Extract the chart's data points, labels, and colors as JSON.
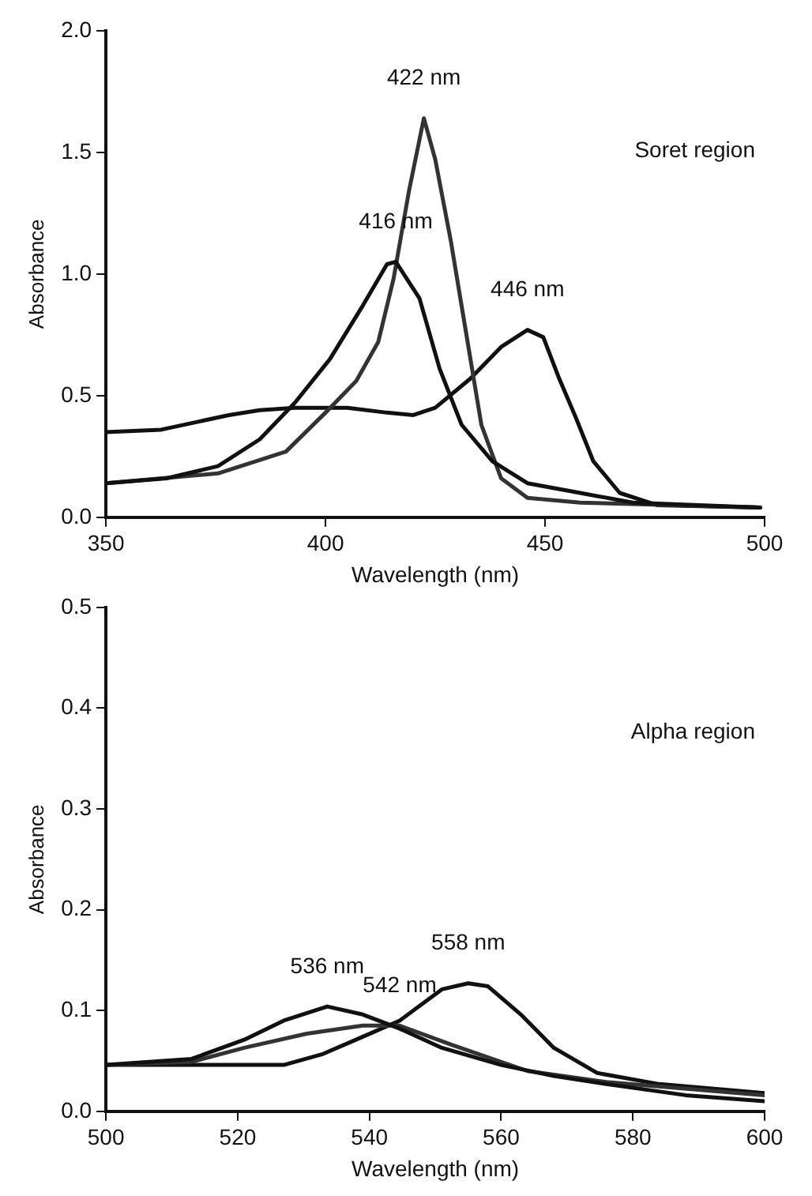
{
  "chart_data": [
    {
      "type": "line",
      "xlabel": "Wavelength (nm)",
      "ylabel": "Absorbance",
      "xlim": [
        350,
        500
      ],
      "ylim": [
        0,
        2.0
      ],
      "xticks": [
        350,
        400,
        450,
        500
      ],
      "yticks": [
        {
          "value": 0,
          "label": "0.0"
        },
        {
          "value": 0.5,
          "label": "0.5"
        },
        {
          "value": 1,
          "label": "1.0"
        },
        {
          "value": 1.5,
          "label": "1.5"
        },
        {
          "value": 2,
          "label": "2.0"
        }
      ],
      "grid": false,
      "legend": false,
      "marker": "none",
      "line_style": "solid",
      "series": [
        {
          "color": "#111111",
          "x": [
            350,
            363.8,
            375.5,
            385,
            393,
            401,
            408.5,
            414,
            416,
            421.4,
            426,
            431,
            438,
            446,
            458,
            470,
            499
          ],
          "values": [
            0.14,
            0.16,
            0.21,
            0.32,
            0.47,
            0.65,
            0.87,
            1.04,
            1.05,
            0.9,
            0.61,
            0.38,
            0.23,
            0.14,
            0.1,
            0.06,
            0.04
          ]
        },
        {
          "color": "#333333",
          "x": [
            350,
            375.5,
            391,
            400,
            407,
            412,
            415.5,
            419,
            422.4,
            425,
            428.5,
            432,
            435.5,
            440,
            446,
            458,
            499
          ],
          "values": [
            0.14,
            0.18,
            0.27,
            0.43,
            0.56,
            0.72,
            0.98,
            1.34,
            1.64,
            1.47,
            1.14,
            0.76,
            0.38,
            0.16,
            0.08,
            0.06,
            0.04
          ]
        },
        {
          "color": "#111111",
          "x": [
            350,
            362.6,
            378,
            385,
            393,
            405,
            414,
            420,
            425,
            433,
            440,
            446,
            449.6,
            453,
            457,
            461,
            467,
            475.5,
            499
          ],
          "values": [
            0.35,
            0.36,
            0.42,
            0.44,
            0.45,
            0.45,
            0.43,
            0.42,
            0.45,
            0.57,
            0.7,
            0.77,
            0.74,
            0.58,
            0.41,
            0.23,
            0.1,
            0.05,
            0.04
          ]
        }
      ],
      "annotations": [
        {
          "text": "416 nm",
          "x": 416,
          "y": 1.05
        },
        {
          "text": "422 nm",
          "x": 422.4,
          "y": 1.64
        },
        {
          "text": "446 nm",
          "x": 446,
          "y": 0.77
        },
        "Soret region"
      ]
    },
    {
      "type": "line",
      "xlabel": "Wavelength (nm)",
      "ylabel": "Absorbance",
      "xlim": [
        500,
        600
      ],
      "ylim": [
        0,
        0.5
      ],
      "xticks": [
        500,
        520,
        540,
        560,
        580,
        600
      ],
      "yticks": [
        {
          "value": 0,
          "label": "0.0"
        },
        0.1,
        0.2,
        0.3,
        0.4,
        0.5
      ],
      "grid": false,
      "legend": false,
      "marker": "none",
      "line_style": "solid",
      "series": [
        {
          "color": "#111111",
          "x": [
            500,
            513,
            521,
            527,
            533.6,
            539,
            544.6,
            551,
            560,
            568,
            576,
            588,
            600
          ],
          "values": [
            0.046,
            0.052,
            0.071,
            0.09,
            0.104,
            0.096,
            0.082,
            0.063,
            0.046,
            0.035,
            0.027,
            0.016,
            0.01
          ]
        },
        {
          "color": "#333333",
          "x": [
            500,
            513,
            521,
            530.5,
            539,
            544.6,
            552.5,
            564,
            576,
            600
          ],
          "values": [
            0.046,
            0.049,
            0.063,
            0.077,
            0.085,
            0.085,
            0.066,
            0.04,
            0.029,
            0.016
          ]
        },
        {
          "color": "#111111",
          "x": [
            500,
            517,
            527,
            533,
            539,
            544.6,
            551,
            555,
            558,
            563,
            568,
            574.6,
            584,
            600
          ],
          "values": [
            0.046,
            0.046,
            0.046,
            0.057,
            0.074,
            0.09,
            0.121,
            0.127,
            0.124,
            0.096,
            0.063,
            0.038,
            0.027,
            0.018
          ]
        }
      ],
      "annotations": [
        {
          "text": "536 nm",
          "x": 533.6,
          "y": 0.104
        },
        {
          "text": "542 nm",
          "x": 544.6,
          "y": 0.085
        },
        {
          "text": "558 nm",
          "x": 555,
          "y": 0.127
        },
        "Alpha region"
      ]
    }
  ]
}
